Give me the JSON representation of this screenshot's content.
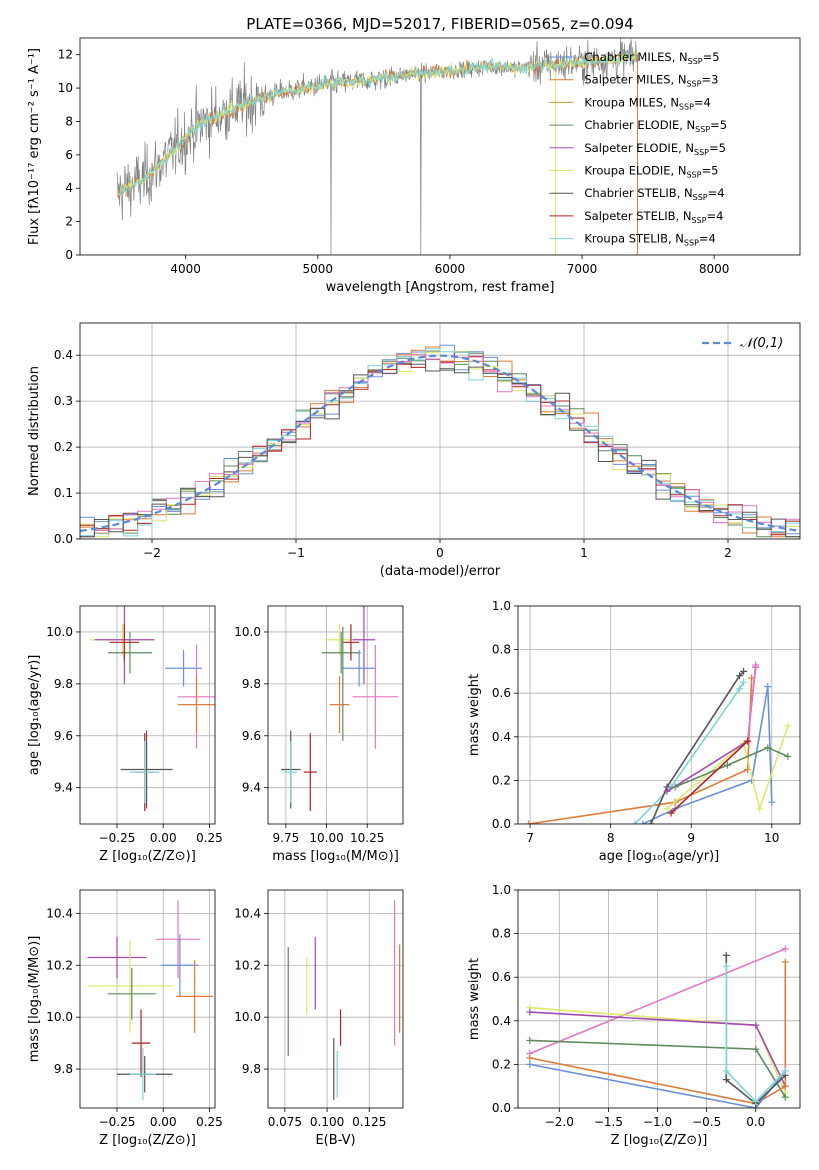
{
  "figure_title": "PLATE=0366, MJD=52017, FIBERID=0565, z=0.094",
  "colors": {
    "Chabrier MILES": "#6a8fdc",
    "Salpeter MILES": "#e07b39",
    "Kroupa MILES": "#c79a3a",
    "Chabrier ELODIE": "#5e8a5e",
    "Salpeter ELODIE": "#a44ab4",
    "Kroupa ELODIE": "#dfe86a",
    "Chabrier STELIB": "#555555",
    "Salpeter STELIB": "#b22222",
    "Kroupa STELIB": "#7fd3d8",
    "pink": "#e377c2",
    "data": "#808080"
  },
  "chart_data": [
    {
      "type": "line",
      "id": "spectrum",
      "title": "PLATE=0366, MJD=52017, FIBERID=0565, z=0.094",
      "xlabel": "wavelength [Angstrom, rest frame]",
      "ylabel": "Flux [fλ10⁻¹⁷ erg cm⁻² s⁻¹ A⁻¹]",
      "xlim": [
        3200,
        8650
      ],
      "ylim": [
        0,
        13
      ],
      "xticks": [
        "4000",
        "5000",
        "6000",
        "7000",
        "8000"
      ],
      "yticks": [
        "0",
        "2",
        "4",
        "6",
        "8",
        "10",
        "12"
      ],
      "legend_position": "right",
      "legend": [
        {
          "name": "Chabrier MILES",
          "nssp": "5"
        },
        {
          "name": "Salpeter MILES",
          "nssp": "3"
        },
        {
          "name": "Kroupa MILES",
          "nssp": "4"
        },
        {
          "name": "Chabrier ELODIE",
          "nssp": "5"
        },
        {
          "name": "Salpeter ELODIE",
          "nssp": "5"
        },
        {
          "name": "Kroupa ELODIE",
          "nssp": "5"
        },
        {
          "name": "Chabrier STELIB",
          "nssp": "4"
        },
        {
          "name": "Salpeter STELIB",
          "nssp": "4"
        },
        {
          "name": "Kroupa STELIB",
          "nssp": "4"
        }
      ],
      "continuum": {
        "x": [
          3500,
          3700,
          3900,
          4100,
          4300,
          4500,
          4700,
          4900,
          5100,
          5300,
          5500,
          5700,
          5900,
          6100,
          6300,
          6500,
          6700,
          6900,
          7100,
          7300,
          7420
        ],
        "y": [
          3.8,
          4.6,
          6.2,
          7.8,
          8.6,
          9.2,
          9.7,
          10.0,
          10.3,
          10.4,
          10.6,
          10.8,
          11.0,
          11.1,
          11.3,
          11.2,
          11.4,
          11.5,
          11.6,
          11.8,
          11.9
        ]
      }
    },
    {
      "type": "bar",
      "id": "residuals",
      "xlabel": "(data-model)/error",
      "ylabel": "Normed distribution",
      "xlim": [
        -2.5,
        2.5
      ],
      "ylim": [
        0,
        0.47
      ],
      "xticks": [
        "−2",
        "−1",
        "0",
        "1",
        "2"
      ],
      "yticks": [
        "0.0",
        "0.1",
        "0.2",
        "0.3",
        "0.4"
      ],
      "legend": "𝒩(0,1)",
      "legend_position": "top-right"
    },
    {
      "type": "scatter",
      "id": "age-vs-Z",
      "xlabel": "Z [log₁₀(Z/Z⊙)]",
      "ylabel": "age  [log₁₀(age/yr)]",
      "xlim": [
        -0.45,
        0.28
      ],
      "ylim": [
        9.26,
        10.1
      ],
      "xticks": [
        "−0.25",
        "0.00",
        "0.25"
      ],
      "yticks": [
        "9.4",
        "9.6",
        "9.8",
        "10.0"
      ],
      "points": [
        {
          "series": "Kroupa ELODIE",
          "x": -0.22,
          "y": 9.97,
          "xerr": 0.18,
          "yerr": 0.06
        },
        {
          "series": "Salpeter ELODIE",
          "x": -0.21,
          "y": 9.97,
          "xerr": 0.16,
          "yerr": 0.17
        },
        {
          "series": "Chabrier ELODIE",
          "x": -0.18,
          "y": 9.92,
          "xerr": 0.12,
          "yerr": 0.08
        },
        {
          "series": "Salpeter STELIB",
          "x": -0.21,
          "y": 9.96,
          "xerr": 0.08,
          "yerr": 0.07
        },
        {
          "series": "Chabrier MILES",
          "x": 0.11,
          "y": 9.86,
          "xerr": 0.1,
          "yerr": 0.07
        },
        {
          "series": "pink",
          "x": 0.18,
          "y": 9.75,
          "xerr": 0.1,
          "yerr": 0.2
        },
        {
          "series": "Salpeter MILES",
          "x": 0.18,
          "y": 9.72,
          "xerr": 0.1,
          "yerr": 0.11
        },
        {
          "series": "Chabrier STELIB",
          "x": -0.09,
          "y": 9.47,
          "xerr": 0.14,
          "yerr": 0.15
        },
        {
          "series": "Salpeter STELIB",
          "x": -0.1,
          "y": 9.46,
          "xerr": 0.05,
          "yerr": 0.15
        },
        {
          "series": "Kroupa STELIB",
          "x": -0.1,
          "y": 9.46,
          "xerr": 0.08,
          "yerr": 0.12
        }
      ]
    },
    {
      "type": "scatter",
      "id": "age-vs-mass",
      "xlabel": "mass [log₁₀(M/M⊙)]",
      "xlim": [
        9.64,
        10.47
      ],
      "ylim": [
        9.26,
        10.1
      ],
      "xticks": [
        "9.75",
        "10.00",
        "10.25"
      ],
      "yticks": [
        "9.4",
        "9.6",
        "9.8",
        "10.0"
      ],
      "points": [
        {
          "series": "Kroupa ELODIE",
          "x": 10.08,
          "y": 9.97,
          "xerr": 0.09,
          "yerr": 0.06
        },
        {
          "series": "Salpeter ELODIE",
          "x": 10.23,
          "y": 9.97,
          "xerr": 0.07,
          "yerr": 0.17
        },
        {
          "series": "Chabrier ELODIE",
          "x": 10.09,
          "y": 9.92,
          "xerr": 0.12,
          "yerr": 0.08
        },
        {
          "series": "Salpeter STELIB",
          "x": 10.15,
          "y": 9.96,
          "xerr": 0.05,
          "yerr": 0.07
        },
        {
          "series": "Chabrier MILES",
          "x": 10.2,
          "y": 9.86,
          "xerr": 0.1,
          "yerr": 0.07
        },
        {
          "series": "pink",
          "x": 10.3,
          "y": 9.75,
          "xerr": 0.14,
          "yerr": 0.2
        },
        {
          "series": "Salpeter MILES",
          "x": 10.08,
          "y": 9.72,
          "xerr": 0.06,
          "yerr": 0.11
        },
        {
          "series": "Chabrier STELIB",
          "x": 9.78,
          "y": 9.47,
          "xerr": 0.06,
          "yerr": 0.15
        },
        {
          "series": "Salpeter STELIB",
          "x": 9.9,
          "y": 9.46,
          "xerr": 0.04,
          "yerr": 0.15
        },
        {
          "series": "Kroupa STELIB",
          "x": 9.78,
          "y": 9.46,
          "xerr": 0.04,
          "yerr": 0.12
        },
        {
          "series": "Chabrier ELODIE",
          "x": 10.1,
          "y": 9.8,
          "xerr": 0.0,
          "yerr": 0.22
        }
      ]
    },
    {
      "type": "line",
      "id": "mass-weight-vs-age",
      "xlabel": "age  [log₁₀(age/yr)]",
      "ylabel": "mass weight",
      "xlim": [
        6.85,
        10.35
      ],
      "ylim": [
        0,
        1.0
      ],
      "xticks": [
        "7",
        "8",
        "9",
        "10"
      ],
      "yticks": [
        "0.0",
        "0.2",
        "0.4",
        "0.6",
        "0.8",
        "1.0"
      ],
      "series": [
        {
          "name": "Salpeter MILES",
          "x": [
            6.98,
            8.8,
            9.7,
            9.75
          ],
          "y": [
            0.0,
            0.1,
            0.25,
            0.67
          ]
        },
        {
          "name": "Chabrier MILES",
          "x": [
            8.4,
            8.8,
            9.75,
            9.95,
            10.0
          ],
          "y": [
            0.0,
            0.07,
            0.2,
            0.63,
            0.1
          ]
        },
        {
          "name": "Kroupa STELIB",
          "x": [
            8.3,
            8.75,
            9.6,
            9.65
          ],
          "y": [
            0.0,
            0.17,
            0.62,
            0.65
          ]
        },
        {
          "name": "Chabrier STELIB",
          "x": [
            8.5,
            8.7,
            9.6,
            9.65
          ],
          "y": [
            0.0,
            0.17,
            0.68,
            0.7
          ]
        },
        {
          "name": "Kroupa ELODIE",
          "x": [
            8.7,
            9.65,
            9.85,
            10.2
          ],
          "y": [
            0.07,
            0.37,
            0.07,
            0.45
          ]
        },
        {
          "name": "Salpeter ELODIE",
          "x": [
            8.7,
            9.7,
            9.8
          ],
          "y": [
            0.15,
            0.38,
            0.72
          ]
        },
        {
          "name": "Chabrier ELODIE",
          "x": [
            8.8,
            9.45,
            9.95,
            10.2
          ],
          "y": [
            0.17,
            0.27,
            0.35,
            0.31
          ]
        },
        {
          "name": "pink",
          "x": [
            9.7,
            9.8
          ],
          "y": [
            0.38,
            0.73
          ]
        },
        {
          "name": "Salpeter STELIB",
          "x": [
            8.75,
            9.7
          ],
          "y": [
            0.05,
            0.38
          ]
        }
      ]
    },
    {
      "type": "scatter",
      "id": "mass-vs-Z",
      "xlabel": "Z [log₁₀(Z/Z⊙)]",
      "ylabel": "mass [log₁₀(M/M⊙)]",
      "xlim": [
        -0.45,
        0.28
      ],
      "ylim": [
        9.65,
        10.49
      ],
      "xticks": [
        "−0.25",
        "0.00",
        "0.25"
      ],
      "yticks": [
        "9.8",
        "10.0",
        "10.2",
        "10.4"
      ],
      "points": [
        {
          "series": "Salpeter ELODIE",
          "x": -0.25,
          "y": 10.23,
          "xerr": 0.16,
          "yerr": 0.08
        },
        {
          "series": "pink",
          "x": 0.08,
          "y": 10.3,
          "xerr": 0.12,
          "yerr": 0.15
        },
        {
          "series": "Chabrier MILES",
          "x": 0.09,
          "y": 10.2,
          "xerr": 0.1,
          "yerr": 0.12
        },
        {
          "series": "Kroupa ELODIE",
          "x": -0.18,
          "y": 10.12,
          "xerr": 0.23,
          "yerr": 0.18
        },
        {
          "series": "Chabrier ELODIE",
          "x": -0.17,
          "y": 10.09,
          "xerr": 0.13,
          "yerr": 0.1
        },
        {
          "series": "Salpeter MILES",
          "x": 0.17,
          "y": 10.08,
          "xerr": 0.1,
          "yerr": 0.14
        },
        {
          "series": "Salpeter STELIB",
          "x": -0.12,
          "y": 9.9,
          "xerr": 0.05,
          "yerr": 0.13
        },
        {
          "series": "Chabrier STELIB",
          "x": -0.1,
          "y": 9.78,
          "xerr": 0.15,
          "yerr": 0.07
        },
        {
          "series": "Kroupa STELIB",
          "x": -0.11,
          "y": 9.78,
          "xerr": 0.07,
          "yerr": 0.1
        }
      ]
    },
    {
      "type": "scatter",
      "id": "mass-vs-EBV",
      "xlabel": "E(B-V)",
      "xlim": [
        0.065,
        0.145
      ],
      "ylim": [
        9.65,
        10.49
      ],
      "xticks": [
        "0.075",
        "0.100",
        "0.125"
      ],
      "yticks": [
        "9.8",
        "10.0",
        "10.2",
        "10.4"
      ],
      "points": [
        {
          "series": "Chabrier ELODIE",
          "x": 0.077,
          "y": 10.06,
          "xerr": 0.0,
          "yerr": 0.21
        },
        {
          "series": "Kroupa ELODIE",
          "x": 0.088,
          "y": 10.12,
          "xerr": 0.0,
          "yerr": 0.11
        },
        {
          "series": "Salpeter ELODIE",
          "x": 0.093,
          "y": 10.17,
          "xerr": 0.0,
          "yerr": 0.14
        },
        {
          "series": "Salpeter STELIB",
          "x": 0.108,
          "y": 9.96,
          "xerr": 0.0,
          "yerr": 0.07
        },
        {
          "series": "Chabrier STELIB",
          "x": 0.104,
          "y": 9.8,
          "xerr": 0.0,
          "yerr": 0.12
        },
        {
          "series": "Kroupa STELIB",
          "x": 0.106,
          "y": 9.78,
          "xerr": 0.0,
          "yerr": 0.09
        },
        {
          "series": "pink",
          "x": 0.14,
          "y": 10.17,
          "xerr": 0.0,
          "yerr": 0.28
        },
        {
          "series": "Salpeter MILES",
          "x": 0.143,
          "y": 10.11,
          "xerr": 0.0,
          "yerr": 0.17
        }
      ]
    },
    {
      "type": "line",
      "id": "mass-weight-vs-Z",
      "xlabel": "Z [log₁₀(Z/Z⊙)]",
      "ylabel": "mass weight",
      "xlim": [
        -2.42,
        0.45
      ],
      "ylim": [
        0,
        1.0
      ],
      "xticks": [
        "−2.0",
        "−1.5",
        "−1.0",
        "−0.5",
        "0.0"
      ],
      "yticks": [
        "0.0",
        "0.2",
        "0.4",
        "0.6",
        "0.8",
        "1.0"
      ],
      "series": [
        {
          "name": "pink",
          "x": [
            -2.3,
            0.3
          ],
          "y": [
            0.25,
            0.73
          ]
        },
        {
          "name": "Kroupa ELODIE",
          "x": [
            -2.3,
            0.0,
            0.3
          ],
          "y": [
            0.46,
            0.38,
            0.07
          ]
        },
        {
          "name": "Salpeter ELODIE",
          "x": [
            -2.3,
            0.0,
            0.3
          ],
          "y": [
            0.44,
            0.38,
            0.1
          ]
        },
        {
          "name": "Chabrier ELODIE",
          "x": [
            -2.3,
            0.0,
            0.3
          ],
          "y": [
            0.31,
            0.27,
            0.05
          ]
        },
        {
          "name": "Salpeter MILES",
          "x": [
            -2.3,
            0.0,
            0.3,
            0.3
          ],
          "y": [
            0.23,
            0.02,
            0.1,
            0.67
          ]
        },
        {
          "name": "Chabrier MILES",
          "x": [
            -2.3,
            0.0,
            0.3
          ],
          "y": [
            0.2,
            0.0,
            0.17
          ]
        },
        {
          "name": "Chabrier STELIB",
          "x": [
            -0.3,
            -0.3,
            0.0,
            0.3
          ],
          "y": [
            0.7,
            0.13,
            0.02,
            0.15
          ]
        },
        {
          "name": "Kroupa STELIB",
          "x": [
            -0.3,
            -0.3,
            0.0,
            0.3
          ],
          "y": [
            0.65,
            0.17,
            0.03,
            0.17
          ]
        }
      ]
    }
  ]
}
